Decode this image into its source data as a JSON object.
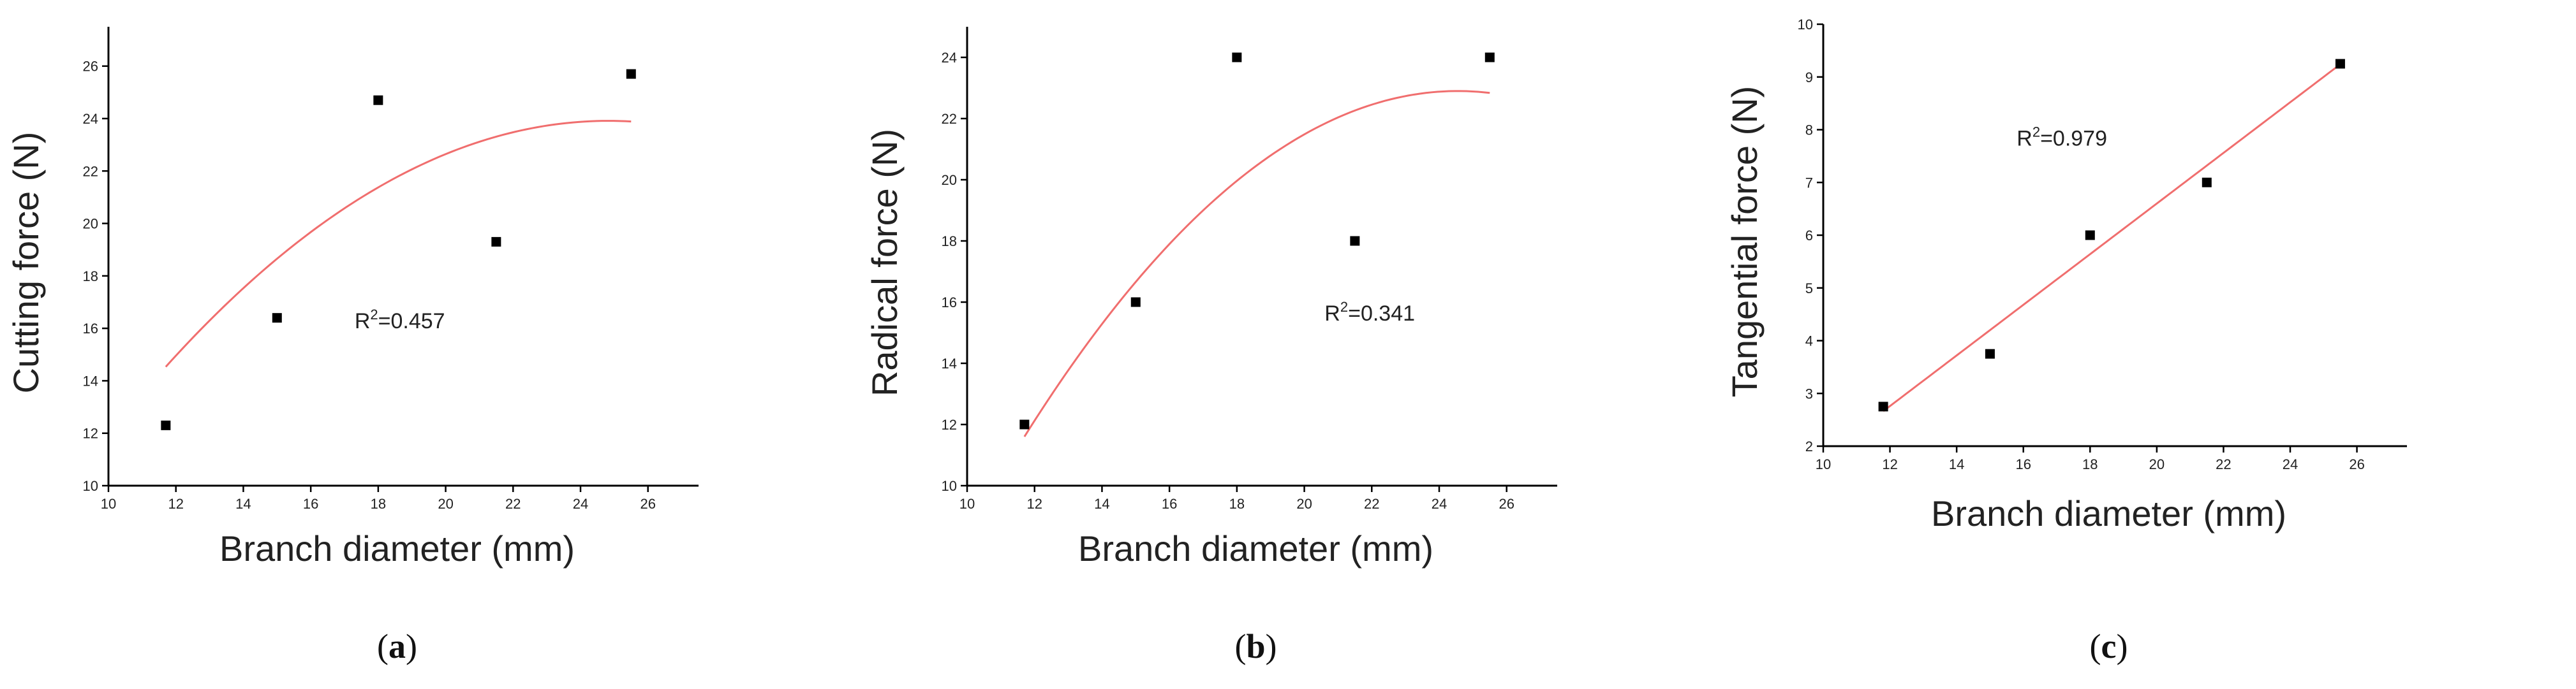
{
  "chart_data": [
    {
      "type": "scatter",
      "panel_label": "(a)",
      "xlabel": "Branch diameter (mm)",
      "ylabel": "Cutting force (N)",
      "xlim": [
        10,
        27.5
      ],
      "ylim": [
        10,
        27.5
      ],
      "xticks": [
        "10",
        "12",
        "14",
        "16",
        "18",
        "20",
        "22",
        "24",
        "26"
      ],
      "yticks": [
        "10",
        "12",
        "14",
        "16",
        "18",
        "20",
        "22",
        "24",
        "26"
      ],
      "points": [
        {
          "x": 11.7,
          "y": 12.3
        },
        {
          "x": 15.0,
          "y": 16.4
        },
        {
          "x": 18.0,
          "y": 24.7
        },
        {
          "x": 21.5,
          "y": 19.3
        },
        {
          "x": 25.5,
          "y": 25.7
        }
      ],
      "fit": {
        "type": "quadratic",
        "x_range": [
          11.7,
          25.5
        ],
        "coef": [
          -9.6287,
          2.7016,
          -0.0544
        ]
      },
      "r2_prefix": "R",
      "r2_sup": "2",
      "r2_value": "=0.457",
      "r2_pos": {
        "x": 17.3,
        "y": 16.0
      },
      "colors": {
        "points": "#000000",
        "fit": "#f06e6e"
      }
    },
    {
      "type": "scatter",
      "panel_label": "(b)",
      "xlabel": "Branch diameter (mm)",
      "ylabel": "Radical force (N)",
      "xlim": [
        10,
        27.5
      ],
      "ylim": [
        10,
        25
      ],
      "xticks": [
        "10",
        "12",
        "14",
        "16",
        "18",
        "20",
        "22",
        "24",
        "26"
      ],
      "yticks": [
        "10",
        "12",
        "14",
        "16",
        "18",
        "20",
        "22",
        "24"
      ],
      "points": [
        {
          "x": 11.7,
          "y": 12.0
        },
        {
          "x": 15.0,
          "y": 16.0
        },
        {
          "x": 18.0,
          "y": 24.0
        },
        {
          "x": 21.5,
          "y": 18.0
        },
        {
          "x": 25.5,
          "y": 24.0
        }
      ],
      "fit": {
        "type": "quadratic",
        "x_range": [
          11.7,
          25.5
        ],
        "coef": [
          -18.3296,
          3.3586,
          -0.0684
        ]
      },
      "r2_prefix": "R",
      "r2_sup": "2",
      "r2_value": "=0.341",
      "r2_pos": {
        "x": 20.6,
        "y": 15.4
      },
      "colors": {
        "points": "#000000",
        "fit": "#f06e6e"
      }
    },
    {
      "type": "scatter",
      "panel_label": "(c)",
      "xlabel": "Branch diameter (mm)",
      "ylabel": "Tangential force (N)",
      "xlim": [
        10,
        27.5
      ],
      "ylim": [
        2,
        10
      ],
      "xticks": [
        "10",
        "12",
        "14",
        "16",
        "18",
        "20",
        "22",
        "24",
        "26"
      ],
      "yticks": [
        "2",
        "3",
        "4",
        "5",
        "6",
        "7",
        "8",
        "9",
        "10"
      ],
      "points": [
        {
          "x": 11.8,
          "y": 2.75
        },
        {
          "x": 15.0,
          "y": 3.75
        },
        {
          "x": 18.0,
          "y": 6.0
        },
        {
          "x": 21.5,
          "y": 7.0
        },
        {
          "x": 25.5,
          "y": 9.25
        }
      ],
      "fit": {
        "type": "linear",
        "x_range": [
          11.8,
          25.5
        ],
        "coef": [
          -3.0,
          0.48
        ]
      },
      "r2_prefix": "R",
      "r2_sup": "2",
      "r2_value": "=0.979",
      "r2_pos": {
        "x": 15.8,
        "y": 7.7
      },
      "colors": {
        "points": "#000000",
        "fit": "#f06e6e"
      }
    }
  ]
}
